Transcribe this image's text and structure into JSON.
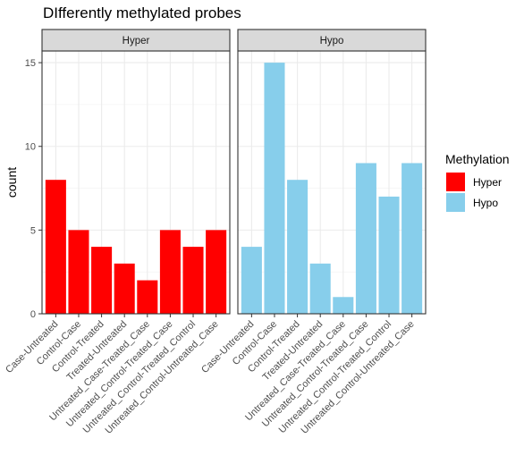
{
  "chart_data": {
    "type": "bar",
    "title": "DIfferently methylated probes",
    "xlabel": "",
    "ylabel": "count",
    "ylim": [
      0,
      15.7
    ],
    "yticks": [
      0,
      5,
      10,
      15
    ],
    "grid": true,
    "legend_position": "right",
    "legend_title": "Methylation",
    "categories": [
      "Case-Untreated",
      "Control-Case",
      "Control-Treated",
      "Treated-Untreated",
      "Untreated_Case-Treated_Case",
      "Untreated_Control-Treated_Case",
      "Untreated_Control-Treated_Control",
      "Untreated_Control-Untreated_Case"
    ],
    "series": [
      {
        "name": "Hyper",
        "color": "#ff0000",
        "values": [
          8,
          5,
          4,
          3,
          2,
          5,
          4,
          5
        ]
      },
      {
        "name": "Hypo",
        "color": "#87ceeb",
        "values": [
          4,
          15,
          8,
          3,
          1,
          9,
          7,
          9
        ]
      }
    ]
  }
}
